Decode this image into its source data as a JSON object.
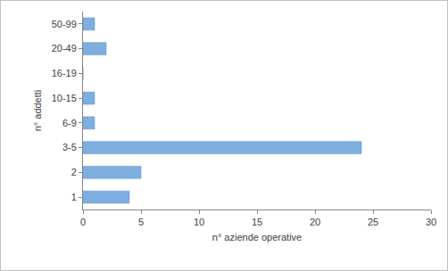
{
  "chart_data": {
    "type": "bar",
    "orientation": "horizontal",
    "categories": [
      "1",
      "2",
      "3-5",
      "6-9",
      "10-15",
      "16-19",
      "20-49",
      "50-99"
    ],
    "values": [
      4,
      5,
      24,
      1,
      1,
      0,
      2,
      1
    ],
    "color": "#7eaee0",
    "x_label": "n° aziende operative",
    "y_label": "n° addetti",
    "xlim": [
      0,
      30
    ],
    "xticks": [
      0,
      5,
      10,
      15,
      20,
      25,
      30
    ],
    "grid": false
  }
}
